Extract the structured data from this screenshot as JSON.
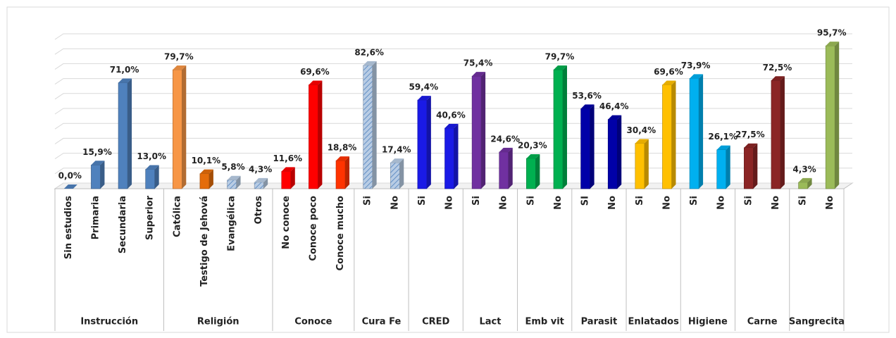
{
  "chart_data": {
    "type": "bar",
    "ylim": [
      0,
      100
    ],
    "yticks": [
      0,
      10,
      20,
      30,
      40,
      50,
      60,
      70,
      80,
      90,
      100
    ],
    "grid": true,
    "groups": [
      {
        "name": "Instrucción",
        "categories": [
          "Sin estudios",
          "Primaria",
          "Secundaria",
          "Superior"
        ],
        "values": [
          0.0,
          15.9,
          71.0,
          13.0
        ],
        "value_labels": [
          "0,0%",
          "15,9%",
          "71,0%",
          "13,0%"
        ],
        "colors": [
          "#4f81bd",
          "#4f81bd",
          "#4f81bd",
          "#4f81bd"
        ],
        "hatched": [
          false,
          false,
          false,
          false
        ]
      },
      {
        "name": "Religión",
        "categories": [
          "Católica",
          "Testigo de Jehová",
          "Evangélica",
          "Otros"
        ],
        "values": [
          79.7,
          10.1,
          5.8,
          4.3
        ],
        "value_labels": [
          "79,7%",
          "10,1%",
          "5,8%",
          "4,3%"
        ],
        "colors": [
          "#f79646",
          "#e46c0a",
          "#b8cce4",
          "#b8cce4"
        ],
        "hatched": [
          false,
          false,
          true,
          true
        ]
      },
      {
        "name": "Conoce",
        "categories": [
          "No conoce",
          "Conoce poco",
          "Conoce mucho"
        ],
        "values": [
          11.6,
          69.6,
          18.8
        ],
        "value_labels": [
          "11,6%",
          "69,6%",
          "18,8%"
        ],
        "colors": [
          "#ff0000",
          "#ff0000",
          "#ff3300"
        ],
        "hatched": [
          false,
          false,
          false
        ]
      },
      {
        "name": "Cura Fe",
        "categories": [
          "Si",
          "No"
        ],
        "values": [
          82.6,
          17.4
        ],
        "value_labels": [
          "82,6%",
          "17,4%"
        ],
        "colors": [
          "#b8cce4",
          "#b8cce4"
        ],
        "hatched": [
          true,
          true
        ]
      },
      {
        "name": "CRED",
        "categories": [
          "Si",
          "No"
        ],
        "values": [
          59.4,
          40.6
        ],
        "value_labels": [
          "59,4%",
          "40,6%"
        ],
        "colors": [
          "#1a1ae6",
          "#1a1ae6"
        ],
        "hatched": [
          false,
          false
        ]
      },
      {
        "name": "Lact",
        "categories": [
          "Si",
          "No"
        ],
        "values": [
          75.4,
          24.6
        ],
        "value_labels": [
          "75,4%",
          "24,6%"
        ],
        "colors": [
          "#7030a0",
          "#7030a0"
        ],
        "hatched": [
          false,
          false
        ]
      },
      {
        "name": "Emb vit",
        "categories": [
          "Si",
          "No"
        ],
        "values": [
          20.3,
          79.7
        ],
        "value_labels": [
          "20,3%",
          "79,7%"
        ],
        "colors": [
          "#00b050",
          "#00b050"
        ],
        "hatched": [
          false,
          false
        ]
      },
      {
        "name": "Parasit",
        "categories": [
          "SI",
          "No"
        ],
        "values": [
          53.6,
          46.4
        ],
        "value_labels": [
          "53,6%",
          "46,4%"
        ],
        "colors": [
          "#0000a8",
          "#0000a8"
        ],
        "hatched": [
          false,
          false
        ]
      },
      {
        "name": "Enlatados",
        "categories": [
          "Si",
          "No"
        ],
        "values": [
          30.4,
          69.6
        ],
        "value_labels": [
          "30,4%",
          "69,6%"
        ],
        "colors": [
          "#ffc000",
          "#ffc000"
        ],
        "hatched": [
          false,
          false
        ]
      },
      {
        "name": "Higiene",
        "categories": [
          "Si",
          "No"
        ],
        "values": [
          73.9,
          26.1
        ],
        "value_labels": [
          "73,9%",
          "26,1%"
        ],
        "colors": [
          "#00b0f0",
          "#00b0f0"
        ],
        "hatched": [
          false,
          false
        ]
      },
      {
        "name": "Carne",
        "categories": [
          "Si",
          "No"
        ],
        "values": [
          27.5,
          72.5
        ],
        "value_labels": [
          "27,5%",
          "72,5%"
        ],
        "colors": [
          "#8b2525",
          "#8b2525"
        ],
        "hatched": [
          false,
          false
        ]
      },
      {
        "name": "Sangrecita",
        "categories": [
          "Si",
          "No"
        ],
        "values": [
          4.3,
          95.7
        ],
        "value_labels": [
          "4,3%",
          "95,7%"
        ],
        "colors": [
          "#9bbb59",
          "#9bbb59"
        ],
        "hatched": [
          false,
          false
        ]
      }
    ]
  }
}
